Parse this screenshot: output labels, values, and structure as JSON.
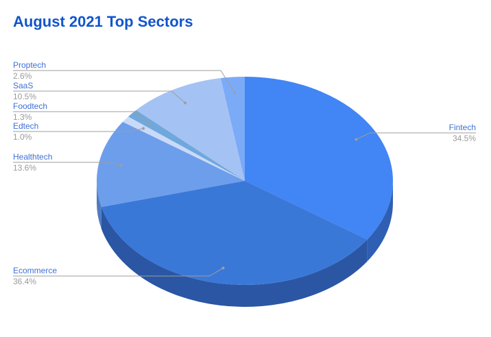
{
  "chart_data": {
    "type": "pie",
    "title": "August 2021 Top Sectors",
    "three_d": true,
    "slices": [
      {
        "name": "Fintech",
        "value": 34.5,
        "label": "34.5%",
        "color": "#4285f4",
        "side_color": "#2f5fb3"
      },
      {
        "name": "Ecommerce",
        "value": 36.4,
        "label": "36.4%",
        "color": "#3a78d8",
        "side_color": "#2a56a3"
      },
      {
        "name": "Healthtech",
        "value": 13.6,
        "label": "13.6%",
        "color": "#6d9eeb",
        "side_color": "#4f7ac0"
      },
      {
        "name": "Edtech",
        "value": 1.0,
        "label": "1.0%",
        "color": "#c9daf8",
        "side_color": "#9fb3d6"
      },
      {
        "name": "Foodtech",
        "value": 1.3,
        "label": "1.3%",
        "color": "#6fa8dc",
        "side_color": "#4f83b3"
      },
      {
        "name": "SaaS",
        "value": 10.5,
        "label": "10.5%",
        "color": "#a4c2f4",
        "side_color": "#7f9dd0"
      },
      {
        "name": "Proptech",
        "value": 2.6,
        "label": "2.6%",
        "color": "#7baaf7",
        "side_color": "#5b86cc"
      }
    ]
  }
}
